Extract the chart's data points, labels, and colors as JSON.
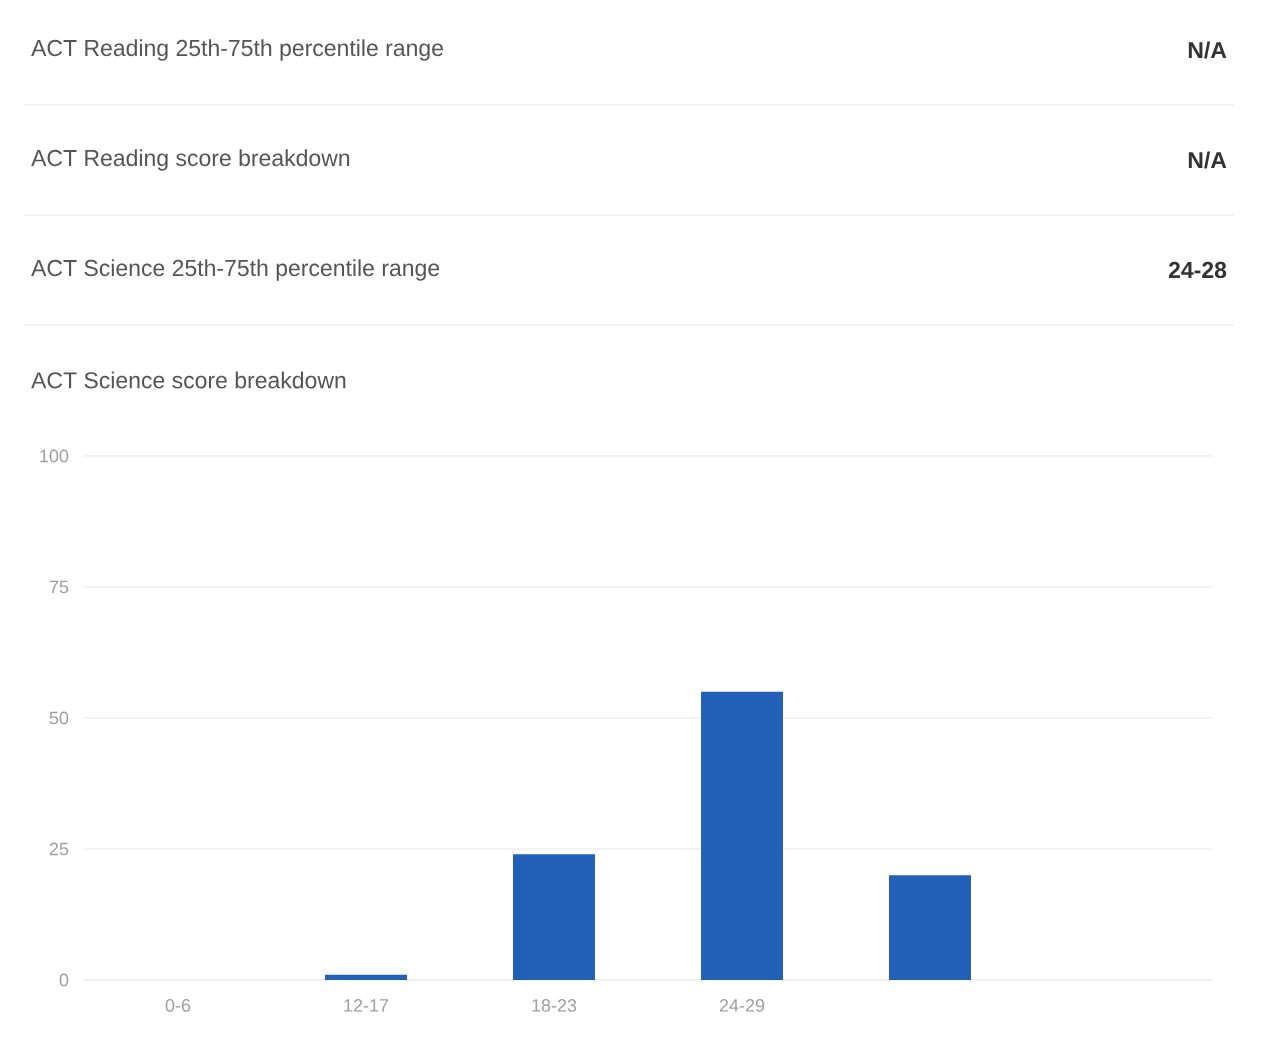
{
  "chart_data": {
    "type": "bar",
    "title": "ACT Science score breakdown",
    "annotations": [
      "ACT Reading 25th-75th percentile range",
      "N/A",
      "ACT Reading score breakdown",
      "N/A",
      "ACT Science 25th-75th percentile range",
      "24-28"
    ],
    "categories": [
      "0-6",
      "12-17",
      "18-23",
      "24-29",
      null,
      null
    ],
    "values": [
      0,
      1,
      24,
      55,
      20,
      0
    ],
    "color": "#2361b9",
    "ylim": [
      0,
      100
    ],
    "yticks": [
      0,
      25,
      50,
      75,
      100
    ],
    "grid": "y"
  }
}
